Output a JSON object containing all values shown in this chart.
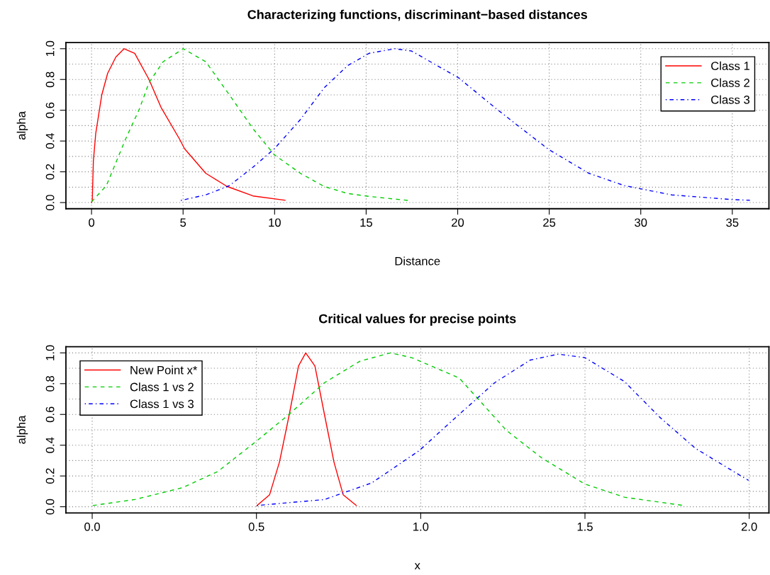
{
  "chart_data": [
    {
      "type": "line",
      "title": "Characterizing functions, discriminant−based distances",
      "xlabel": "Distance",
      "ylabel": "alpha",
      "xlim": [
        -1.4,
        37.0
      ],
      "ylim": [
        -0.04,
        1.04
      ],
      "xticks": [
        0,
        5,
        10,
        15,
        20,
        25,
        30,
        35
      ],
      "yticks": [
        {
          "value": 0,
          "label": "0.0"
        },
        {
          "value": 0.2,
          "label": "0.2"
        },
        {
          "value": 0.4,
          "label": "0.4"
        },
        {
          "value": 0.6,
          "label": "0.6"
        },
        {
          "value": 0.8,
          "label": "0.8"
        },
        {
          "value": 1,
          "label": "1.0"
        }
      ],
      "grid": true,
      "legend": "top right",
      "series": [
        {
          "name": "Class 1",
          "color": "#ff0000",
          "line_style": "solid",
          "x": [
            0.0,
            0.04,
            0.1,
            0.23,
            0.56,
            0.88,
            1.33,
            1.78,
            2.36,
            3.14,
            3.79,
            4.82,
            5.08,
            6.24,
            7.4,
            8.82,
            10.57
          ],
          "values": [
            0.0,
            0.013,
            0.27,
            0.45,
            0.7,
            0.84,
            0.946,
            1.0,
            0.97,
            0.8,
            0.62,
            0.41,
            0.35,
            0.19,
            0.105,
            0.043,
            0.015
          ]
        },
        {
          "name": "Class 2",
          "color": "#00cd00",
          "line_style": "dashed",
          "x": [
            0.0,
            0.81,
            1.85,
            2.62,
            3.14,
            3.91,
            5.01,
            6.24,
            7.53,
            8.82,
            9.99,
            11.41,
            12.7,
            13.99,
            15.16,
            17.29
          ],
          "values": [
            0.005,
            0.11,
            0.41,
            0.61,
            0.78,
            0.915,
            1.0,
            0.915,
            0.7,
            0.48,
            0.31,
            0.19,
            0.105,
            0.059,
            0.04,
            0.014
          ]
        },
        {
          "name": "Class 3",
          "color": "#0000ff",
          "line_style": "dashdot",
          "x": [
            4.88,
            6.24,
            7.53,
            8.82,
            9.99,
            11.41,
            12.7,
            13.99,
            15.16,
            16.57,
            17.48,
            20.06,
            22.0,
            23.29,
            24.97,
            27.17,
            29.11,
            31.69,
            34.92,
            35.96
          ],
          "values": [
            0.014,
            0.05,
            0.11,
            0.23,
            0.35,
            0.54,
            0.745,
            0.89,
            0.97,
            1.0,
            0.985,
            0.81,
            0.62,
            0.5,
            0.345,
            0.19,
            0.11,
            0.05,
            0.02,
            0.015
          ]
        }
      ]
    },
    {
      "type": "line",
      "title": "Critical values for precise points",
      "xlabel": "x",
      "ylabel": "alpha",
      "xlim": [
        -0.08,
        2.06
      ],
      "ylim": [
        -0.04,
        1.04
      ],
      "xticks": [
        {
          "value": 0,
          "label": "0.0"
        },
        {
          "value": 0.5,
          "label": "0.5"
        },
        {
          "value": 1,
          "label": "1.0"
        },
        {
          "value": 1.5,
          "label": "1.5"
        },
        {
          "value": 2,
          "label": "2.0"
        }
      ],
      "yticks": [
        {
          "value": 0,
          "label": "0.0"
        },
        {
          "value": 0.2,
          "label": "0.2"
        },
        {
          "value": 0.4,
          "label": "0.4"
        },
        {
          "value": 0.6,
          "label": "0.6"
        },
        {
          "value": 0.8,
          "label": "0.8"
        },
        {
          "value": 1,
          "label": "1.0"
        }
      ],
      "grid": true,
      "legend": "top left",
      "series": [
        {
          "name": "New Point x*",
          "color": "#ff0000",
          "line_style": "solid",
          "x": [
            0.502,
            0.54,
            0.57,
            0.6,
            0.628,
            0.65,
            0.678,
            0.707,
            0.736,
            0.764,
            0.804
          ],
          "values": [
            0.008,
            0.078,
            0.29,
            0.6,
            0.915,
            1.0,
            0.915,
            0.6,
            0.29,
            0.078,
            0.008
          ]
        },
        {
          "name": "Class 1 vs 2",
          "color": "#00cd00",
          "line_style": "dashed",
          "x": [
            0.002,
            0.13,
            0.275,
            0.383,
            0.502,
            0.599,
            0.707,
            0.815,
            0.908,
            0.973,
            1.117,
            1.261,
            1.368,
            1.5,
            1.62,
            1.8
          ],
          "values": [
            0.008,
            0.047,
            0.124,
            0.23,
            0.43,
            0.6,
            0.806,
            0.946,
            1.0,
            0.969,
            0.837,
            0.496,
            0.318,
            0.147,
            0.062,
            0.008
          ]
        },
        {
          "name": "Class 1 vs 3",
          "color": "#0000ff",
          "line_style": "dashdot",
          "x": [
            0.502,
            0.707,
            0.851,
            0.995,
            1.117,
            1.225,
            1.333,
            1.419,
            1.5,
            1.62,
            1.728,
            1.836,
            1.944,
            1.998
          ],
          "values": [
            0.008,
            0.047,
            0.155,
            0.364,
            0.6,
            0.806,
            0.953,
            0.992,
            0.969,
            0.814,
            0.581,
            0.38,
            0.24,
            0.171
          ]
        }
      ]
    }
  ]
}
